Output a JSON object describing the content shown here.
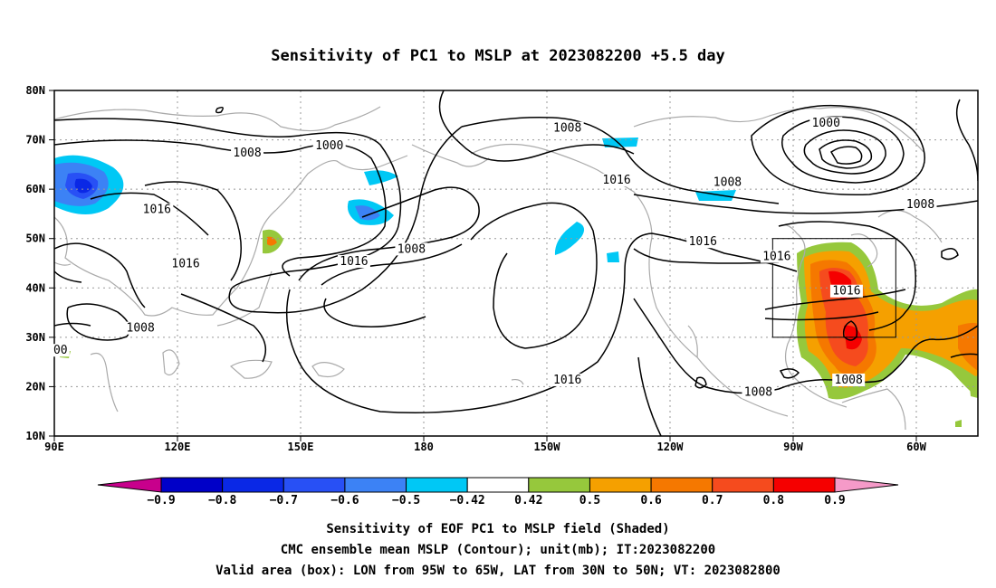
{
  "title": "Sensitivity of PC1 to MSLP at 2023082200 +5.5 day",
  "axes": {
    "lat_labels": [
      "80N",
      "70N",
      "60N",
      "50N",
      "40N",
      "30N",
      "20N",
      "10N"
    ],
    "lon_labels": [
      "90E",
      "120E",
      "150E",
      "180",
      "150W",
      "120W",
      "90W",
      "60W"
    ],
    "lat_range": [
      10,
      80
    ],
    "lon_range_east": [
      90,
      315
    ],
    "grid": true
  },
  "contour_labels": [
    {
      "text": "1000",
      "lon": 157,
      "lat": 68.5
    },
    {
      "text": "1008",
      "lon": 137,
      "lat": 67
    },
    {
      "text": "1008",
      "lon": 215,
      "lat": 72
    },
    {
      "text": "1000",
      "lon": 278,
      "lat": 73
    },
    {
      "text": "1016",
      "lon": 115,
      "lat": 55.5
    },
    {
      "text": "1016",
      "lon": 122,
      "lat": 44.5
    },
    {
      "text": "1016",
      "lon": 163,
      "lat": 45
    },
    {
      "text": "1008",
      "lon": 177,
      "lat": 47.5
    },
    {
      "text": "1016",
      "lon": 227,
      "lat": 61.5
    },
    {
      "text": "1008",
      "lon": 254,
      "lat": 61
    },
    {
      "text": "1008",
      "lon": 301,
      "lat": 56.5
    },
    {
      "text": "1016",
      "lon": 248,
      "lat": 49
    },
    {
      "text": "1016",
      "lon": 266,
      "lat": 46
    },
    {
      "text": "1016",
      "lon": 283,
      "lat": 39
    },
    {
      "text": "1008",
      "lon": 111,
      "lat": 31.5
    },
    {
      "text": "00",
      "lon": 91.5,
      "lat": 27
    },
    {
      "text": "1016",
      "lon": 215,
      "lat": 21
    },
    {
      "text": "1008",
      "lon": 261.5,
      "lat": 18.5
    },
    {
      "text": "1008",
      "lon": 283.5,
      "lat": 21
    }
  ],
  "valid_box": {
    "lon_w": 265,
    "lon_e": 295,
    "lat_s": 30,
    "lat_n": 50
  },
  "colorbar": {
    "labels": [
      "−0.9",
      "−0.8",
      "−0.7",
      "−0.6",
      "−0.5",
      "−0.42",
      "0.42",
      "0.5",
      "0.6",
      "0.7",
      "0.8",
      "0.9"
    ],
    "colors": [
      "#0000c8",
      "#0a28e6",
      "#2850f5",
      "#3c82f5",
      "#00c8f5",
      "#ffffff",
      "#96c83c",
      "#f5a000",
      "#f57800",
      "#f54b1e",
      "#f50000"
    ],
    "low_end_color": "#c8008c",
    "high_end_color": "#f59ac8"
  },
  "footer": {
    "line1": "Sensitivity of EOF PC1 to MSLP field (Shaded)",
    "line2": "CMC ensemble mean MSLP (Contour); unit(mb); IT:2023082200",
    "line3": "Valid area (box): LON from 95W to 65W, LAT from 30N to 50N; VT: 2023082800"
  }
}
